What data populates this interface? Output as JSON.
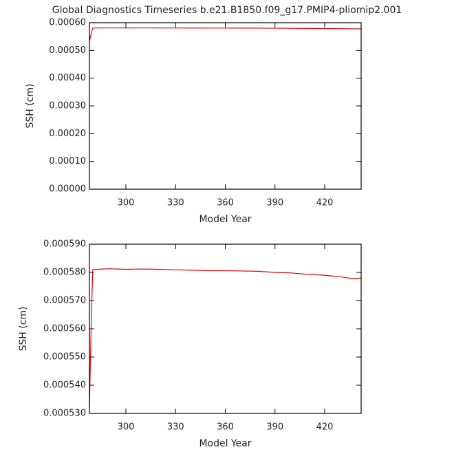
{
  "chart_data": [
    {
      "type": "line",
      "title": "Global Diagnostics Timeseries b.e21.B1850.f09_g17.PMIP4-pliomip2.001",
      "xlabel": "Model Year",
      "ylabel": "SSH (cm)",
      "color": "#e00000",
      "x": [
        278,
        279,
        280,
        283,
        290,
        300,
        310,
        320,
        330,
        340,
        350,
        360,
        370,
        380,
        390,
        400,
        410,
        420,
        430,
        437,
        442
      ],
      "values": [
        0.000532,
        0.00056,
        0.000581,
        0.0005811,
        0.0005813,
        0.0005811,
        0.0005812,
        0.0005811,
        0.0005809,
        0.0005808,
        0.0005806,
        0.0005806,
        0.0005805,
        0.0005804,
        0.00058,
        0.0005798,
        0.0005793,
        0.000579,
        0.0005784,
        0.0005778,
        0.000578
      ],
      "xlim": [
        278,
        442
      ],
      "xticks": [
        300,
        330,
        360,
        390,
        420
      ],
      "ylim": [
        0,
        0.0006
      ],
      "yticks": [
        {
          "value": 0,
          "label": "0.00000"
        },
        {
          "value": 0.0001,
          "label": "0.00010"
        },
        {
          "value": 0.0002,
          "label": "0.00020"
        },
        {
          "value": 0.0003,
          "label": "0.00030"
        },
        {
          "value": 0.0004,
          "label": "0.00040"
        },
        {
          "value": 0.0005,
          "label": "0.00050"
        },
        {
          "value": 0.0006,
          "label": "0.00060"
        }
      ]
    },
    {
      "type": "line",
      "xlabel": "Model Year",
      "ylabel": "SSH (cm)",
      "color": "#e00000",
      "x": [
        278,
        279,
        280,
        283,
        290,
        300,
        310,
        320,
        330,
        340,
        350,
        360,
        370,
        380,
        390,
        400,
        410,
        420,
        430,
        437,
        442
      ],
      "values": [
        0.000532,
        0.00056,
        0.000581,
        0.0005811,
        0.0005813,
        0.0005811,
        0.0005812,
        0.0005811,
        0.0005809,
        0.0005808,
        0.0005806,
        0.0005806,
        0.0005805,
        0.0005804,
        0.00058,
        0.0005798,
        0.0005793,
        0.000579,
        0.0005784,
        0.0005778,
        0.000578
      ],
      "xlim": [
        278,
        442
      ],
      "xticks": [
        300,
        330,
        360,
        390,
        420
      ],
      "ylim": [
        0.00053,
        0.00059
      ],
      "yticks": [
        {
          "value": 0.00053,
          "label": "0.000530"
        },
        {
          "value": 0.00054,
          "label": "0.000540"
        },
        {
          "value": 0.00055,
          "label": "0.000550"
        },
        {
          "value": 0.00056,
          "label": "0.000560"
        },
        {
          "value": 0.00057,
          "label": "0.000570"
        },
        {
          "value": 0.00058,
          "label": "0.000580"
        },
        {
          "value": 0.00059,
          "label": "0.000590"
        }
      ]
    }
  ]
}
